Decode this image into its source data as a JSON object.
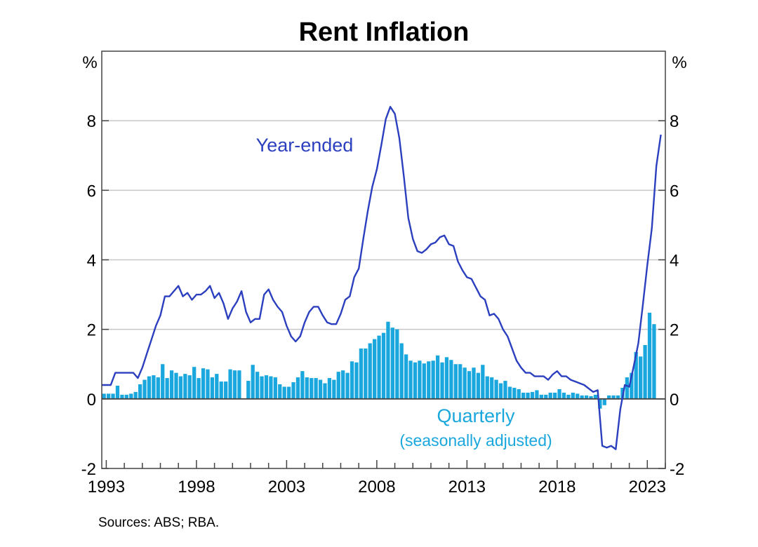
{
  "chart_data": {
    "type": "bar",
    "title": "Rent Inflation",
    "y_unit_left": "%",
    "y_unit_right": "%",
    "ylim": [
      -2,
      10
    ],
    "yticks": [
      -2,
      0,
      2,
      4,
      6,
      8
    ],
    "xlim": [
      1992.75,
      2024.0
    ],
    "xticks": [
      1993,
      1998,
      2003,
      2008,
      2013,
      2018,
      2023
    ],
    "grid": true,
    "source": "Sources: ABS; RBA.",
    "colors": {
      "year_ended": "#2b3fbf",
      "quarterly": "#1aa7dd",
      "grid": "#c8c8c8",
      "axis": "#444444"
    },
    "annotations": {
      "year_ended": "Year-ended",
      "quarterly": "Quarterly",
      "quarterly_note": "(seasonally adjusted)"
    },
    "series": [
      {
        "name": "Year-ended",
        "kind": "line",
        "points": [
          [
            1992.75,
            0.4
          ],
          [
            1993.0,
            0.4
          ],
          [
            1993.25,
            0.4
          ],
          [
            1993.5,
            0.75
          ],
          [
            1994.0,
            0.75
          ],
          [
            1994.5,
            0.75
          ],
          [
            1994.75,
            0.6
          ],
          [
            1995.0,
            0.9
          ],
          [
            1995.25,
            1.3
          ],
          [
            1995.5,
            1.7
          ],
          [
            1995.75,
            2.1
          ],
          [
            1996.0,
            2.4
          ],
          [
            1996.25,
            2.95
          ],
          [
            1996.5,
            2.95
          ],
          [
            1996.75,
            3.1
          ],
          [
            1997.0,
            3.25
          ],
          [
            1997.25,
            2.95
          ],
          [
            1997.5,
            3.05
          ],
          [
            1997.75,
            2.85
          ],
          [
            1998.0,
            3.0
          ],
          [
            1998.25,
            3.0
          ],
          [
            1998.5,
            3.1
          ],
          [
            1998.75,
            3.25
          ],
          [
            1999.0,
            2.9
          ],
          [
            1999.25,
            3.05
          ],
          [
            1999.5,
            2.75
          ],
          [
            1999.75,
            2.3
          ],
          [
            2000.0,
            2.6
          ],
          [
            2000.25,
            2.8
          ],
          [
            2000.5,
            3.1
          ],
          [
            2000.75,
            2.5
          ],
          [
            2001.0,
            2.2
          ],
          [
            2001.25,
            2.3
          ],
          [
            2001.5,
            2.3
          ],
          [
            2001.75,
            3.0
          ],
          [
            2002.0,
            3.15
          ],
          [
            2002.25,
            2.85
          ],
          [
            2002.5,
            2.65
          ],
          [
            2002.75,
            2.5
          ],
          [
            2003.0,
            2.1
          ],
          [
            2003.25,
            1.8
          ],
          [
            2003.5,
            1.65
          ],
          [
            2003.75,
            1.8
          ],
          [
            2004.0,
            2.2
          ],
          [
            2004.25,
            2.5
          ],
          [
            2004.5,
            2.65
          ],
          [
            2004.75,
            2.65
          ],
          [
            2005.0,
            2.4
          ],
          [
            2005.25,
            2.2
          ],
          [
            2005.5,
            2.15
          ],
          [
            2005.75,
            2.15
          ],
          [
            2006.0,
            2.45
          ],
          [
            2006.25,
            2.85
          ],
          [
            2006.5,
            2.95
          ],
          [
            2006.75,
            3.5
          ],
          [
            2007.0,
            3.75
          ],
          [
            2007.25,
            4.6
          ],
          [
            2007.5,
            5.4
          ],
          [
            2007.75,
            6.1
          ],
          [
            2008.0,
            6.6
          ],
          [
            2008.25,
            7.3
          ],
          [
            2008.5,
            8.05
          ],
          [
            2008.75,
            8.4
          ],
          [
            2009.0,
            8.2
          ],
          [
            2009.25,
            7.5
          ],
          [
            2009.5,
            6.4
          ],
          [
            2009.75,
            5.2
          ],
          [
            2010.0,
            4.6
          ],
          [
            2010.25,
            4.25
          ],
          [
            2010.5,
            4.2
          ],
          [
            2010.75,
            4.3
          ],
          [
            2011.0,
            4.45
          ],
          [
            2011.25,
            4.5
          ],
          [
            2011.5,
            4.65
          ],
          [
            2011.75,
            4.7
          ],
          [
            2012.0,
            4.45
          ],
          [
            2012.25,
            4.4
          ],
          [
            2012.5,
            3.95
          ],
          [
            2012.75,
            3.7
          ],
          [
            2013.0,
            3.5
          ],
          [
            2013.25,
            3.45
          ],
          [
            2013.5,
            3.2
          ],
          [
            2013.75,
            2.95
          ],
          [
            2014.0,
            2.85
          ],
          [
            2014.25,
            2.4
          ],
          [
            2014.5,
            2.45
          ],
          [
            2014.75,
            2.3
          ],
          [
            2015.0,
            2.0
          ],
          [
            2015.25,
            1.8
          ],
          [
            2015.5,
            1.45
          ],
          [
            2015.75,
            1.1
          ],
          [
            2016.0,
            0.9
          ],
          [
            2016.25,
            0.75
          ],
          [
            2016.5,
            0.75
          ],
          [
            2016.75,
            0.65
          ],
          [
            2017.0,
            0.65
          ],
          [
            2017.25,
            0.65
          ],
          [
            2017.5,
            0.55
          ],
          [
            2017.75,
            0.7
          ],
          [
            2018.0,
            0.8
          ],
          [
            2018.25,
            0.65
          ],
          [
            2018.5,
            0.65
          ],
          [
            2018.75,
            0.55
          ],
          [
            2019.0,
            0.5
          ],
          [
            2019.25,
            0.45
          ],
          [
            2019.5,
            0.4
          ],
          [
            2019.75,
            0.3
          ],
          [
            2020.0,
            0.2
          ],
          [
            2020.25,
            0.25
          ],
          [
            2020.5,
            -1.35
          ],
          [
            2020.75,
            -1.4
          ],
          [
            2021.0,
            -1.35
          ],
          [
            2021.25,
            -1.45
          ],
          [
            2021.5,
            -0.3
          ],
          [
            2021.75,
            0.4
          ],
          [
            2022.0,
            0.35
          ],
          [
            2022.25,
            0.95
          ],
          [
            2022.5,
            1.6
          ],
          [
            2022.75,
            2.7
          ],
          [
            2023.0,
            3.85
          ],
          [
            2023.25,
            4.9
          ],
          [
            2023.5,
            6.7
          ],
          [
            2023.75,
            7.6
          ]
        ]
      },
      {
        "name": "Quarterly",
        "kind": "bar",
        "start": 1992.75,
        "step": 0.25,
        "values": [
          0.15,
          0.15,
          0.15,
          0.38,
          0.12,
          0.12,
          0.15,
          0.2,
          0.42,
          0.55,
          0.65,
          0.68,
          0.62,
          1.0,
          0.6,
          0.82,
          0.75,
          0.65,
          0.72,
          0.68,
          0.92,
          0.6,
          0.88,
          0.85,
          0.62,
          0.72,
          0.5,
          0.5,
          0.85,
          0.82,
          0.82,
          0.0,
          0.52,
          0.98,
          0.78,
          0.65,
          0.68,
          0.65,
          0.62,
          0.42,
          0.35,
          0.35,
          0.48,
          0.62,
          0.8,
          0.62,
          0.6,
          0.6,
          0.55,
          0.45,
          0.6,
          0.55,
          0.78,
          0.82,
          0.75,
          1.08,
          1.05,
          1.45,
          1.45,
          1.6,
          1.72,
          1.82,
          1.9,
          2.22,
          2.05,
          2.0,
          1.6,
          1.28,
          1.1,
          1.05,
          1.1,
          1.02,
          1.08,
          1.1,
          1.25,
          1.05,
          1.2,
          1.12,
          1.0,
          1.0,
          0.9,
          0.8,
          0.9,
          0.75,
          0.98,
          0.65,
          0.62,
          0.55,
          0.45,
          0.52,
          0.35,
          0.32,
          0.28,
          0.18,
          0.18,
          0.2,
          0.25,
          0.12,
          0.12,
          0.18,
          0.18,
          0.28,
          0.18,
          0.12,
          0.18,
          0.15,
          0.1,
          0.1,
          0.08,
          0.12,
          -0.28,
          -0.18,
          0.1,
          0.1,
          0.1,
          0.32,
          0.62,
          0.75,
          1.35,
          1.22,
          1.55,
          2.48,
          2.15
        ]
      }
    ]
  }
}
